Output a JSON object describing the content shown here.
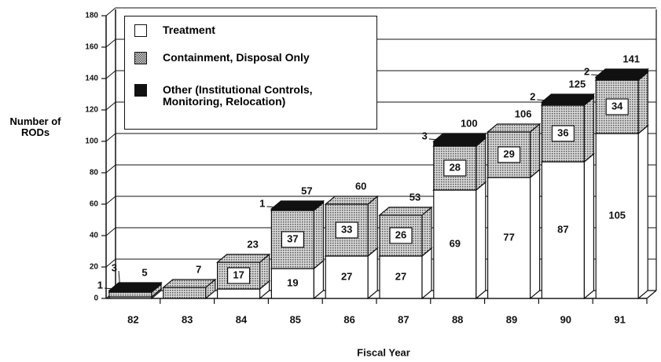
{
  "chart_data": {
    "type": "bar3d_stacked",
    "xlabel": "Fiscal Year",
    "ylabel": "Number of RODs",
    "categories": [
      "82",
      "83",
      "84",
      "85",
      "86",
      "87",
      "88",
      "89",
      "90",
      "91"
    ],
    "series": [
      {
        "name": "Treatment",
        "color": "#ffffff",
        "values": [
          1,
          0,
          6,
          19,
          27,
          27,
          69,
          77,
          87,
          105
        ],
        "value_labels": [
          null,
          null,
          null,
          "19",
          "27",
          "27",
          "69",
          "77",
          "87",
          "105"
        ]
      },
      {
        "name": "Containment, Disposal Only",
        "color": "#b0b0b0",
        "values": [
          3,
          7,
          17,
          37,
          33,
          26,
          28,
          29,
          36,
          34
        ],
        "value_labels": [
          "3",
          null,
          "17",
          "37",
          "33",
          "26",
          "28",
          "29",
          "36",
          "34"
        ]
      },
      {
        "name": "Other (Institutional Controls, Monitoring, Relocation)",
        "color": "#111111",
        "values": [
          1,
          0,
          0,
          1,
          0,
          0,
          3,
          0,
          2,
          2
        ],
        "value_labels": [
          "1",
          null,
          null,
          "1",
          null,
          null,
          "3",
          null,
          "2",
          "2"
        ]
      }
    ],
    "totals": [
      5,
      7,
      23,
      57,
      60,
      53,
      100,
      106,
      125,
      141
    ],
    "ylim": [
      0,
      180
    ],
    "yticks": [
      0,
      20,
      40,
      60,
      80,
      100,
      120,
      140,
      160,
      180
    ],
    "grid": true
  }
}
